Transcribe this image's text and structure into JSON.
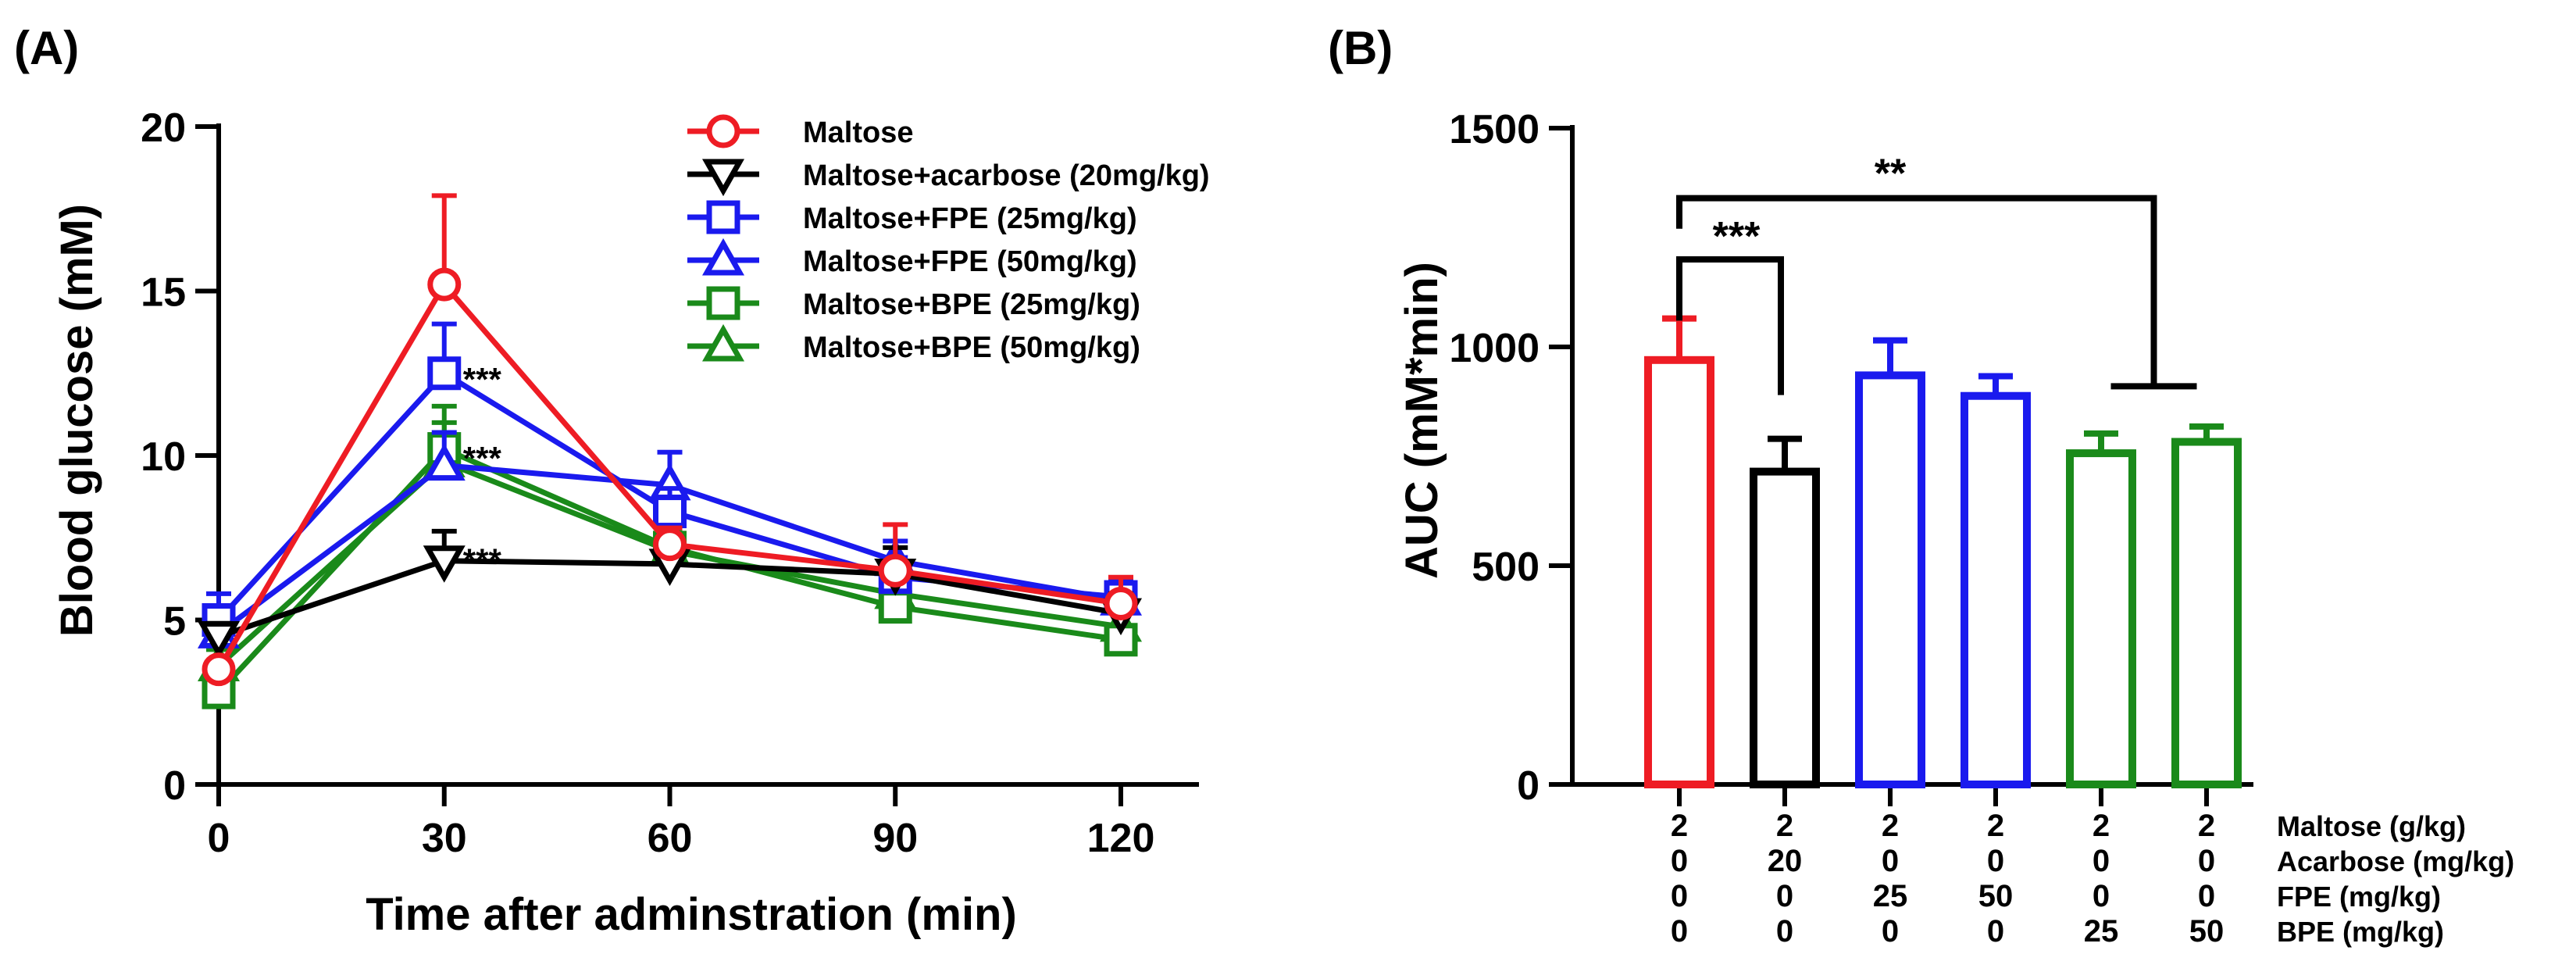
{
  "colors": {
    "red": "#ee1c24",
    "black": "#000000",
    "blue": "#1a1aee",
    "green": "#1a8a1a"
  },
  "chart_data": [
    {
      "panel_label": "(A)",
      "type": "line",
      "xlabel": "Time after adminstration (min)",
      "ylabel": "Blood glucose (mM)",
      "x": [
        0,
        30,
        60,
        90,
        120
      ],
      "x_ticks": [
        "0",
        "30",
        "60",
        "90",
        "120"
      ],
      "y_ticks": [
        "0",
        "5",
        "10",
        "15",
        "20"
      ],
      "xlim": [
        0,
        120
      ],
      "ylim": [
        0,
        20
      ],
      "legend_position": "top-right",
      "series": [
        {
          "name": "Maltose",
          "color": "#ee1c24",
          "marker": "circle",
          "values": [
            3.5,
            15.2,
            7.3,
            6.5,
            5.5
          ],
          "errors": [
            0.2,
            2.7,
            0.5,
            1.4,
            0.8
          ]
        },
        {
          "name": "Maltose+acarbose (20mg/kg)",
          "color": "#000000",
          "marker": "triangle-down",
          "values": [
            4.5,
            6.8,
            6.7,
            6.4,
            5.2
          ],
          "errors": [
            0.4,
            0.9,
            0.8,
            0.8,
            0.6
          ]
        },
        {
          "name": "Maltose+FPE (25mg/kg)",
          "color": "#1a1aee",
          "marker": "square",
          "values": [
            5.0,
            12.5,
            8.3,
            6.3,
            5.7
          ],
          "errors": [
            0.8,
            1.5,
            0.7,
            0.6,
            0.5
          ]
        },
        {
          "name": "Maltose+FPE (50mg/kg)",
          "color": "#1a1aee",
          "marker": "triangle-up",
          "values": [
            4.6,
            9.7,
            9.1,
            6.8,
            5.6
          ],
          "errors": [
            0.6,
            1.0,
            1.0,
            0.6,
            0.5
          ]
        },
        {
          "name": "Maltose+BPE (25mg/kg)",
          "color": "#1a8a1a",
          "marker": "square",
          "values": [
            2.8,
            10.2,
            7.2,
            5.4,
            4.4
          ],
          "errors": [
            0.4,
            1.3,
            0.6,
            0.6,
            0.4
          ]
        },
        {
          "name": "Maltose+BPE (50mg/kg)",
          "color": "#1a8a1a",
          "marker": "triangle-up",
          "values": [
            3.6,
            9.8,
            7.1,
            5.8,
            4.8
          ],
          "errors": [
            0.5,
            1.2,
            0.6,
            0.6,
            0.5
          ]
        }
      ],
      "annotations": [
        {
          "text": "***",
          "x": 30,
          "y": 12.5
        },
        {
          "text": "***",
          "x": 30,
          "y": 10.1
        },
        {
          "text": "***",
          "x": 30,
          "y": 7.0
        }
      ]
    },
    {
      "panel_label": "(B)",
      "type": "bar",
      "ylabel": "AUC (mM*min)",
      "y_ticks": [
        "0",
        "500",
        "1000",
        "1500"
      ],
      "ylim": [
        0,
        1500
      ],
      "bars": [
        {
          "value": 970,
          "error": 95,
          "color": "#ee1c24"
        },
        {
          "value": 715,
          "error": 75,
          "color": "#000000"
        },
        {
          "value": 935,
          "error": 80,
          "color": "#1a1aee"
        },
        {
          "value": 888,
          "error": 45,
          "color": "#1a1aee"
        },
        {
          "value": 757,
          "error": 45,
          "color": "#1a8a1a"
        },
        {
          "value": 783,
          "error": 35,
          "color": "#1a8a1a"
        }
      ],
      "table_rows": [
        {
          "label": "Maltose (g/kg)",
          "values": [
            "2",
            "2",
            "2",
            "2",
            "2",
            "2"
          ]
        },
        {
          "label": "Acarbose (mg/kg)",
          "values": [
            "0",
            "20",
            "0",
            "0",
            "0",
            "0"
          ]
        },
        {
          "label": "FPE (mg/kg)",
          "values": [
            "0",
            "0",
            "25",
            "50",
            "0",
            "0"
          ]
        },
        {
          "label": "BPE (mg/kg)",
          "values": [
            "0",
            "0",
            "0",
            "0",
            "25",
            "50"
          ]
        }
      ],
      "significance": [
        {
          "text": "***",
          "from_bar": 0,
          "to_bar": 1,
          "level": 1200
        },
        {
          "text": "**",
          "from_bar": 0,
          "to_bar": [
            4,
            5
          ],
          "level": 1340
        }
      ]
    }
  ]
}
